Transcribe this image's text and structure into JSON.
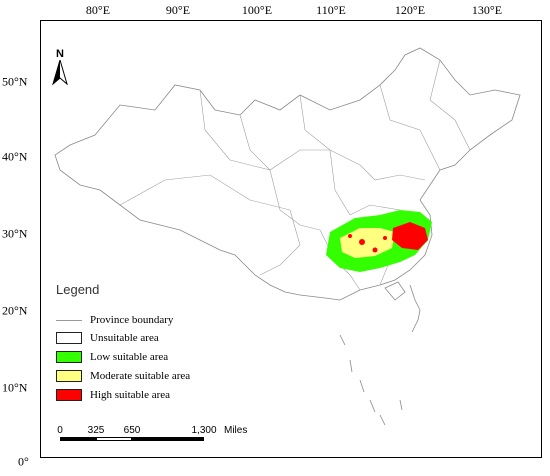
{
  "top_ticks": [
    {
      "label": "80°E",
      "lon": 80
    },
    {
      "label": "90°E",
      "lon": 90
    },
    {
      "label": "100°E",
      "lon": 100
    },
    {
      "label": "110°E",
      "lon": 110
    },
    {
      "label": "120°E",
      "lon": 120
    },
    {
      "label": "130°E",
      "lon": 130
    }
  ],
  "left_ticks": [
    {
      "label": "50°N",
      "lat": 50
    },
    {
      "label": "40°N",
      "lat": 40
    },
    {
      "label": "30°N",
      "lat": 30
    },
    {
      "label": "20°N",
      "lat": 20
    },
    {
      "label": "10°N",
      "lat": 10
    },
    {
      "label": "0°",
      "lat": 0
    }
  ],
  "north_arrow": {
    "label": "N"
  },
  "legend": {
    "title": "Legend",
    "items": [
      {
        "label": "Province boundary",
        "kind": "line",
        "color": "#a0a0a0"
      },
      {
        "label": "Unsuitable area",
        "kind": "fill",
        "color": "#ffffff"
      },
      {
        "label": "Low suitable area",
        "kind": "fill",
        "color": "#33ff00"
      },
      {
        "label": "Moderate suitable area",
        "kind": "fill",
        "color": "#ffff80"
      },
      {
        "label": "High suitable area",
        "kind": "fill",
        "color": "#ff0000"
      }
    ]
  },
  "scale_bar": {
    "ticks": [
      "0",
      "325",
      "650",
      "1,300"
    ],
    "unit": "Miles"
  },
  "colors": {
    "boundary": "#8a8a8a",
    "low": "#33ff00",
    "moderate": "#ffff80",
    "high": "#ff0000"
  }
}
